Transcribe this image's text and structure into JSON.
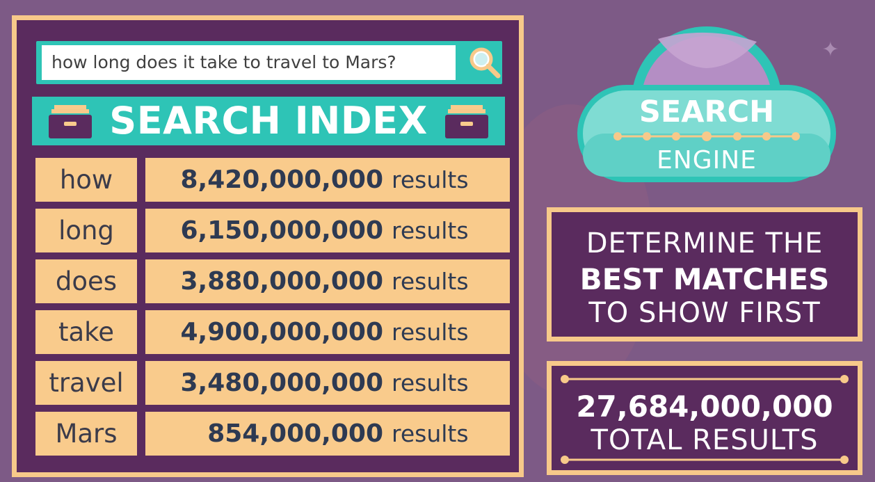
{
  "search": {
    "query": "how long does it take to travel to Mars?"
  },
  "index": {
    "title": "SEARCH INDEX",
    "suffix": "results",
    "rows": [
      {
        "word": "how",
        "count": "8,420,000,000"
      },
      {
        "word": "long",
        "count": "6,150,000,000"
      },
      {
        "word": "does",
        "count": "3,880,000,000"
      },
      {
        "word": "take",
        "count": "4,900,000,000"
      },
      {
        "word": "travel",
        "count": "3,480,000,000"
      },
      {
        "word": "Mars",
        "count": "854,000,000"
      }
    ]
  },
  "engine": {
    "title": "SEARCH",
    "subtitle": "ENGINE"
  },
  "determine": {
    "line1": "DETERMINE THE",
    "line2": "BEST MATCHES",
    "line3": "TO SHOW FIRST"
  },
  "total": {
    "value": "27,684,000,000",
    "label": "TOTAL RESULTS"
  },
  "colors": {
    "background": "#7d5a86",
    "panel": "#5a2b5e",
    "border": "#f7c98a",
    "cell": "#f9cb8c",
    "teal": "#2ec4b6",
    "text_dark": "#2e3a52"
  },
  "icons": [
    "search-icon",
    "file-drawer-icon",
    "sparkle-icon"
  ]
}
